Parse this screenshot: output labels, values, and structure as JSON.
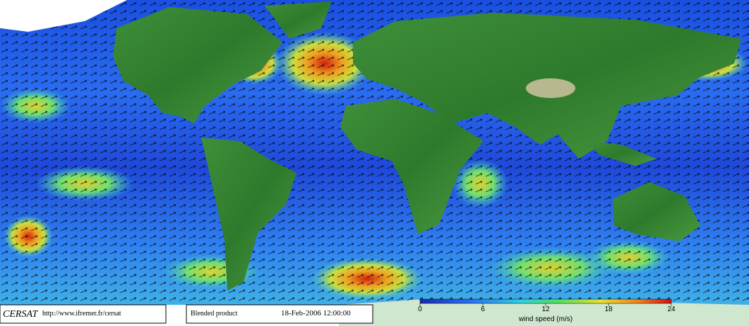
{
  "footer": {
    "logo": "CERSAT",
    "url": "http://www.ifremer.fr/cersat",
    "product": "Blended product",
    "timestamp": "18-Feb-2006 12:00:00"
  },
  "colorbar": {
    "label": "wind speed (m/s)",
    "lim": [
      0,
      24
    ],
    "ticks": [
      0,
      6,
      12,
      18,
      24
    ]
  }
}
